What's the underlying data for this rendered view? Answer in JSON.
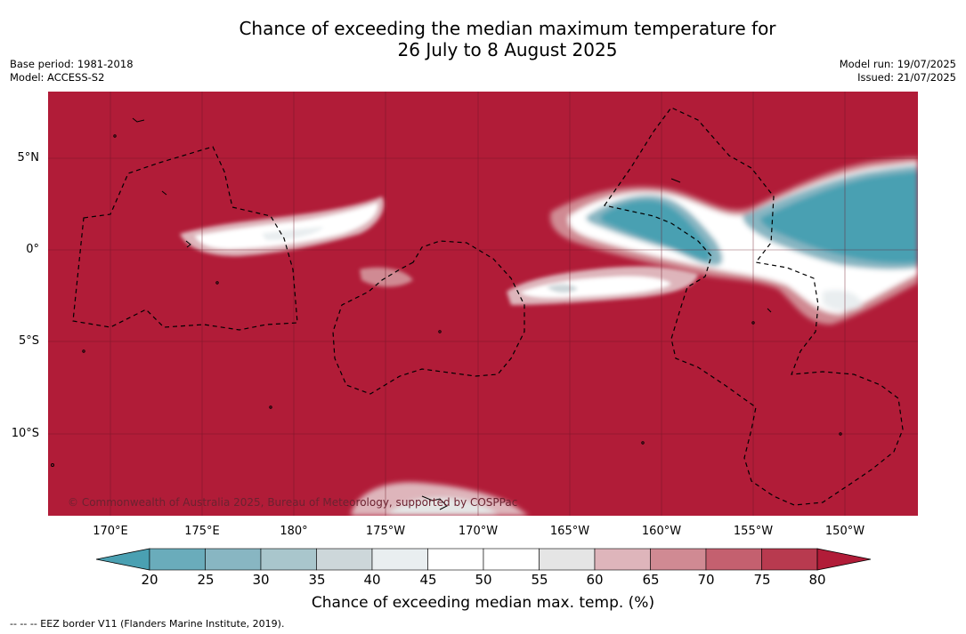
{
  "header": {
    "title_line1": "Chance of exceeding the median maximum temperature for",
    "title_line2": "26 July to 8 August 2025",
    "base_period": "Base period: 1981-2018",
    "model": "Model: ACCESS-S2",
    "model_run": "Model run: 19/07/2025",
    "issued": "Issued: 21/07/2025"
  },
  "map": {
    "copyright": "© Commonwealth of Australia 2025, Bureau of Meteorology, supported by COSPPac",
    "background_color": "#b11c38",
    "lat_labels": [
      "5°N",
      "0°",
      "5°S",
      "10°S"
    ],
    "lon_labels": [
      "170°E",
      "175°E",
      "180°",
      "175°W",
      "170°W",
      "165°W",
      "160°W",
      "155°W",
      "150°W"
    ]
  },
  "colorbar": {
    "ticks": [
      "20",
      "25",
      "30",
      "35",
      "40",
      "45",
      "50",
      "55",
      "60",
      "65",
      "70",
      "75",
      "80"
    ],
    "colors": [
      "#4aa0b2",
      "#6aacbb",
      "#88b6c2",
      "#a9c6cc",
      "#cdd7da",
      "#e9eef0",
      "#ffffff",
      "#ffffff",
      "#e5e5e5",
      "#deb5bb",
      "#d08a93",
      "#c4606f",
      "#b83a4f",
      "#b11c38"
    ],
    "label": "Chance of exceeding median max. temp. (%)"
  },
  "footnote": "--  --  -- EEZ border V11 (Flanders Marine Institute, 2019)."
}
